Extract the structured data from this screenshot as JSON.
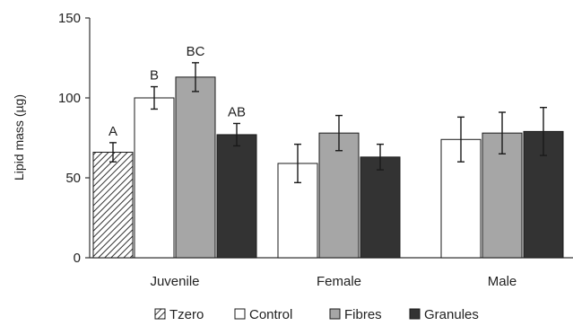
{
  "chart_data": {
    "type": "bar",
    "title": "",
    "xlabel": "",
    "ylabel": "Lipid mass (µg)",
    "ylim": [
      0,
      150
    ],
    "yticks": [
      0,
      50,
      100,
      150
    ],
    "categories": [
      "Juvenile",
      "Female",
      "Male"
    ],
    "series": [
      {
        "name": "Tzero",
        "fill": "hatch",
        "color": "#555555",
        "values": [
          66,
          null,
          null
        ],
        "errors": [
          6,
          null,
          null
        ],
        "labels": [
          "A",
          null,
          null
        ]
      },
      {
        "name": "Control",
        "fill": "#ffffff",
        "color": "#ffffff",
        "values": [
          100,
          59,
          74
        ],
        "errors": [
          7,
          12,
          14
        ],
        "labels": [
          "B",
          null,
          null
        ]
      },
      {
        "name": "Fibres",
        "fill": "#a6a6a6",
        "color": "#a6a6a6",
        "values": [
          113,
          78,
          78
        ],
        "errors": [
          9,
          11,
          13
        ],
        "labels": [
          "BC",
          null,
          null
        ]
      },
      {
        "name": "Granules",
        "fill": "#333333",
        "color": "#333333",
        "values": [
          77,
          63,
          79
        ],
        "errors": [
          7,
          8,
          15
        ],
        "labels": [
          "AB",
          null,
          null
        ]
      }
    ],
    "grid": false,
    "legend_position": "bottom"
  }
}
